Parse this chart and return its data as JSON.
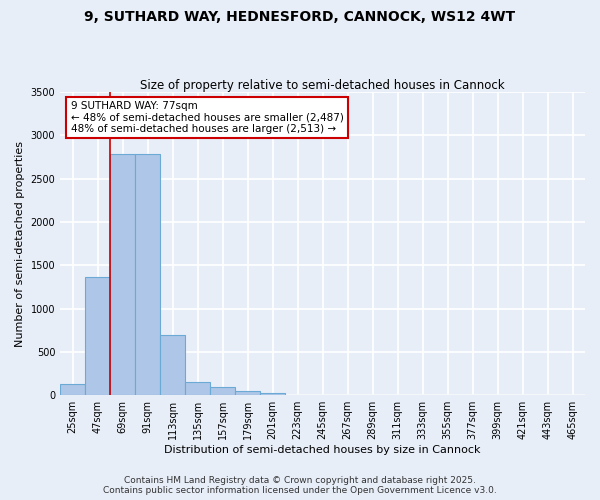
{
  "title": "9, SUTHARD WAY, HEDNESFORD, CANNOCK, WS12 4WT",
  "subtitle": "Size of property relative to semi-detached houses in Cannock",
  "xlabel": "Distribution of semi-detached houses by size in Cannock",
  "ylabel": "Number of semi-detached properties",
  "categories": [
    "25sqm",
    "47sqm",
    "69sqm",
    "91sqm",
    "113sqm",
    "135sqm",
    "157sqm",
    "179sqm",
    "201sqm",
    "223sqm",
    "245sqm",
    "267sqm",
    "289sqm",
    "311sqm",
    "333sqm",
    "355sqm",
    "377sqm",
    "399sqm",
    "421sqm",
    "443sqm",
    "465sqm"
  ],
  "values": [
    130,
    1370,
    2790,
    2790,
    700,
    155,
    100,
    50,
    30,
    0,
    0,
    0,
    0,
    0,
    0,
    0,
    0,
    0,
    0,
    0,
    0
  ],
  "bar_color": "#aec6e8",
  "bar_edge_color": "#6aaad4",
  "vline_color": "#cc0000",
  "annotation_text": "9 SUTHARD WAY: 77sqm\n← 48% of semi-detached houses are smaller (2,487)\n48% of semi-detached houses are larger (2,513) →",
  "annotation_box_facecolor": "white",
  "annotation_box_edgecolor": "#cc0000",
  "ylim": [
    0,
    3500
  ],
  "yticks": [
    0,
    500,
    1000,
    1500,
    2000,
    2500,
    3000,
    3500
  ],
  "background_color": "#e8eef8",
  "grid_color": "white",
  "footer": "Contains HM Land Registry data © Crown copyright and database right 2025.\nContains public sector information licensed under the Open Government Licence v3.0.",
  "title_fontsize": 10,
  "subtitle_fontsize": 8.5,
  "xlabel_fontsize": 8,
  "ylabel_fontsize": 8,
  "tick_fontsize": 7,
  "annotation_fontsize": 7.5,
  "footer_fontsize": 6.5
}
